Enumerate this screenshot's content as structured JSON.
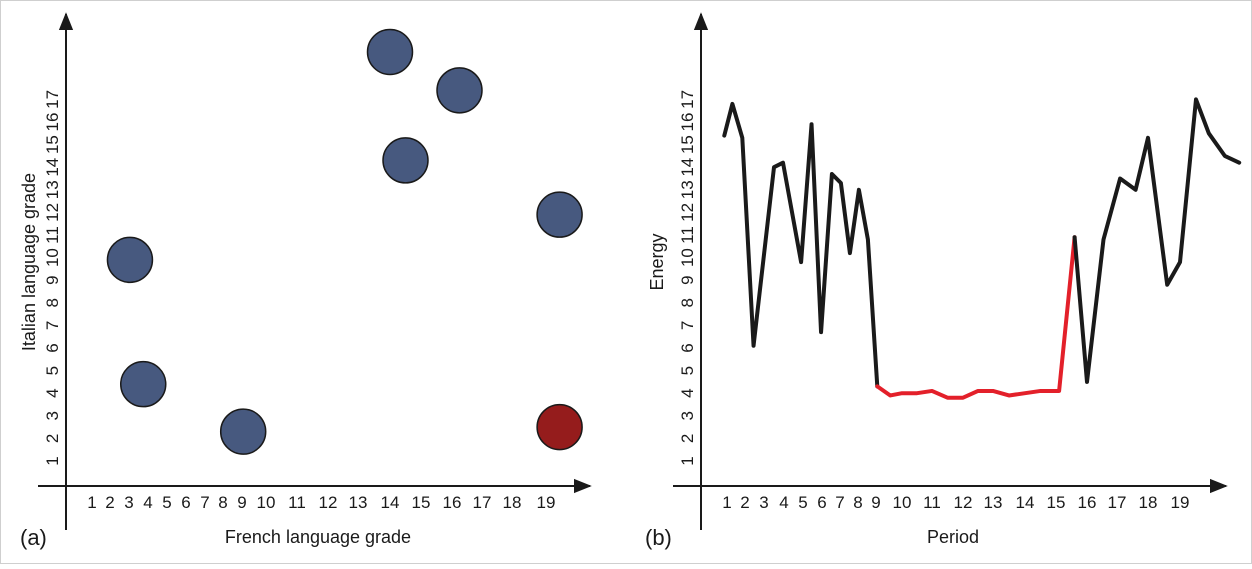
{
  "chart_data": [
    {
      "panel": "(a)",
      "type": "scatter",
      "xlabel": "French language grade",
      "ylabel": "Italian language grade",
      "xticks": [
        1,
        2,
        3,
        4,
        5,
        6,
        7,
        8,
        9,
        10,
        11,
        12,
        13,
        14,
        15,
        16,
        17,
        18,
        19
      ],
      "yticks": [
        1,
        2,
        3,
        4,
        5,
        6,
        7,
        8,
        9,
        10,
        11,
        12,
        13,
        14,
        15,
        16,
        17
      ],
      "series": [
        {
          "points": [
            {
              "x": 3.05,
              "y": 9.9,
              "color": "#47597f"
            },
            {
              "x": 3.75,
              "y": 4.4,
              "color": "#47597f"
            },
            {
              "x": 9.05,
              "y": 2.3,
              "color": "#47597f"
            },
            {
              "x": 14.0,
              "y": 19.1,
              "color": "#47597f"
            },
            {
              "x": 16.25,
              "y": 17.4,
              "color": "#47597f"
            },
            {
              "x": 14.5,
              "y": 14.3,
              "color": "#47597f"
            },
            {
              "x": 19.4,
              "y": 11.9,
              "color": "#47597f"
            },
            {
              "x": 19.4,
              "y": 2.5,
              "color": "#951c1c"
            }
          ]
        }
      ]
    },
    {
      "panel": "(b)",
      "type": "line",
      "xlabel": "Period",
      "ylabel": "Energy",
      "xticks": [
        1,
        2,
        3,
        4,
        5,
        6,
        7,
        8,
        9,
        10,
        11,
        12,
        13,
        14,
        15,
        16,
        17,
        18,
        19
      ],
      "yticks": [
        1,
        2,
        3,
        4,
        5,
        6,
        7,
        8,
        9,
        10,
        11,
        12,
        13,
        14,
        15,
        16,
        17
      ],
      "colors": {
        "normal": "#1a1a1a",
        "highlight": "#e3202a"
      },
      "series": [
        {
          "x": [
            0.85,
            1.3,
            1.85,
            2.45,
            3.5,
            3.95,
            4.9,
            5.45,
            5.95,
            6.55,
            7.05,
            7.55,
            8.05,
            8.55,
            9.05,
            9.55,
            10.0,
            10.5,
            11.0,
            11.5,
            12.0,
            12.5,
            13.0,
            13.5,
            14.0,
            14.5,
            15.1,
            15.6,
            16.0,
            16.55,
            17.1,
            17.6,
            18.0,
            18.6,
            19.0,
            19.5,
            19.9,
            20.4,
            20.85
          ],
          "y": [
            15.4,
            16.8,
            15.3,
            6.1,
            14.0,
            14.2,
            9.8,
            15.9,
            6.7,
            13.7,
            13.3,
            10.2,
            13.0,
            10.8,
            4.3,
            3.9,
            4.0,
            4.0,
            4.1,
            3.8,
            3.8,
            4.1,
            4.1,
            3.9,
            4.0,
            4.1,
            4.1,
            10.9,
            4.5,
            10.8,
            13.5,
            13.0,
            15.3,
            8.8,
            9.8,
            17.0,
            15.5,
            14.5,
            14.2
          ],
          "highlight_points": [
            14,
            15,
            16,
            17,
            18,
            19,
            20,
            21,
            22,
            23,
            24,
            25,
            26,
            27
          ]
        }
      ]
    }
  ]
}
